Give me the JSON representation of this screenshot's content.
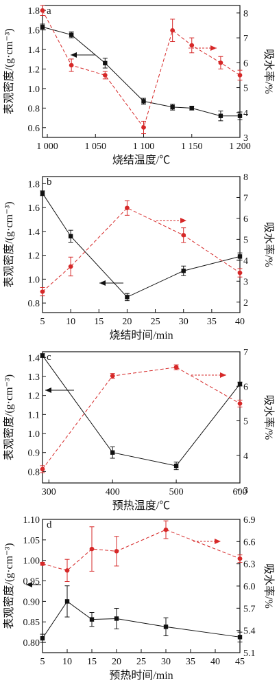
{
  "chart_data": [
    {
      "type": "line",
      "panel": "a",
      "xlabel": "烧结温度/℃",
      "ylabel": "表观密度/(g·cm⁻³)",
      "y2label": "吸水率/%",
      "xlim": [
        995,
        1200
      ],
      "ylim": [
        0.5,
        1.85
      ],
      "y2lim": [
        3.0,
        8.3
      ],
      "xticks": [
        1000,
        1050,
        1100,
        1150,
        1200
      ],
      "xtick_labels": [
        "1 000",
        "1 050",
        "1 100",
        "1 150",
        "1 200"
      ],
      "yticks": [
        0.6,
        0.8,
        1.0,
        1.2,
        1.4,
        1.6,
        1.8
      ],
      "ytick_labels": [
        "0.6",
        "0.8",
        "1.0",
        "1.2",
        "1.4",
        "1.6",
        "1.8"
      ],
      "y2ticks": [
        3,
        4,
        5,
        6,
        7,
        8
      ],
      "y2tick_labels": [
        "3",
        "4",
        "5",
        "6",
        "7",
        "8"
      ],
      "series": [
        {
          "axis": "left",
          "color": "#111111",
          "marker": "square",
          "dash": false,
          "arrow": "left",
          "x": [
            995,
            1025,
            1060,
            1100,
            1130,
            1150,
            1180,
            1200
          ],
          "y": [
            1.63,
            1.55,
            1.26,
            0.87,
            0.81,
            0.8,
            0.72,
            0.72
          ],
          "err": [
            0.03,
            0.03,
            0.05,
            0.03,
            0.03,
            0.02,
            0.05,
            0.04
          ]
        },
        {
          "axis": "right",
          "color": "#d62828",
          "marker": "circle",
          "dash": true,
          "arrow": "right",
          "x": [
            995,
            1025,
            1060,
            1100,
            1130,
            1150,
            1180,
            1200
          ],
          "y": [
            8.1,
            5.9,
            5.5,
            3.4,
            7.3,
            6.7,
            6.0,
            5.5
          ],
          "err": [
            0.2,
            0.25,
            0.15,
            0.25,
            0.45,
            0.3,
            0.25,
            0.2
          ]
        }
      ]
    },
    {
      "type": "line",
      "panel": "b",
      "xlabel": "烧结时间/min",
      "ylabel": "表观密度/(g·cm⁻³)",
      "y2label": "吸水率/%",
      "xlim": [
        5,
        40
      ],
      "ylim": [
        0.72,
        1.86
      ],
      "y2lim": [
        1.5,
        8.0
      ],
      "xticks": [
        5,
        10,
        15,
        20,
        25,
        30,
        35,
        40
      ],
      "xtick_labels": [
        "5",
        "10",
        "15",
        "20",
        "25",
        "30",
        "35",
        "40"
      ],
      "yticks": [
        0.8,
        1.0,
        1.2,
        1.4,
        1.6,
        1.8
      ],
      "ytick_labels": [
        "0.8",
        "1.0",
        "1.2",
        "1.4",
        "1.6",
        "1.8"
      ],
      "y2ticks": [
        2,
        3,
        4,
        5,
        6,
        7,
        8
      ],
      "y2tick_labels": [
        "2",
        "3",
        "4",
        "5",
        "6",
        "7",
        "8"
      ],
      "series": [
        {
          "axis": "left",
          "color": "#111111",
          "marker": "square",
          "dash": false,
          "arrow": "left",
          "x": [
            5,
            10,
            20,
            30,
            40
          ],
          "y": [
            1.72,
            1.36,
            0.85,
            1.07,
            1.19
          ],
          "err": [
            0.02,
            0.05,
            0.03,
            0.04,
            0.03
          ]
        },
        {
          "axis": "right",
          "color": "#d62828",
          "marker": "circle",
          "dash": true,
          "arrow": "right",
          "x": [
            5,
            10,
            20,
            30,
            40
          ],
          "y": [
            2.5,
            3.7,
            6.5,
            5.2,
            3.4
          ],
          "err": [
            0.2,
            0.45,
            0.35,
            0.35,
            0.2
          ]
        }
      ]
    },
    {
      "type": "line",
      "panel": "c",
      "xlabel": "预热温度/℃",
      "ylabel": "表观密度/(g·cm⁻³)",
      "y2label": "吸水率/%",
      "xlim": [
        290,
        600
      ],
      "ylim": [
        0.74,
        1.43
      ],
      "y2lim": [
        3.2,
        7.0
      ],
      "xticks": [
        300,
        400,
        500,
        600
      ],
      "xtick_labels": [
        "300",
        "400",
        "500",
        "600"
      ],
      "yticks": [
        0.8,
        0.9,
        1.0,
        1.1,
        1.2,
        1.3,
        1.4
      ],
      "ytick_labels": [
        "0.8",
        "0.9",
        "1.0",
        "1.1",
        "1.2",
        "1.3",
        "1.4"
      ],
      "y2ticks": [
        3,
        4,
        5,
        6,
        7
      ],
      "y2tick_labels": [
        "3",
        "4",
        "5",
        "6",
        "7"
      ],
      "series": [
        {
          "axis": "left",
          "color": "#111111",
          "marker": "square",
          "dash": false,
          "arrow": "left",
          "x": [
            290,
            400,
            500,
            600
          ],
          "y": [
            1.41,
            0.9,
            0.83,
            1.26
          ],
          "err": [
            0.01,
            0.03,
            0.02,
            0.01
          ]
        },
        {
          "axis": "right",
          "color": "#d62828",
          "marker": "circle",
          "dash": true,
          "arrow": "right",
          "x": [
            290,
            400,
            500,
            600
          ],
          "y": [
            3.6,
            6.3,
            6.55,
            5.5
          ],
          "err": [
            0.1,
            0.07,
            0.07,
            0.1
          ]
        }
      ]
    },
    {
      "type": "line",
      "panel": "d",
      "xlabel": "预热时间/min",
      "ylabel": "表观密度/(g·cm⁻³)",
      "y2label": "吸水率/%",
      "xlim": [
        5,
        45
      ],
      "ylim": [
        0.775,
        1.1
      ],
      "y2lim": [
        5.1,
        6.9
      ],
      "xticks": [
        5,
        10,
        15,
        20,
        25,
        30,
        35,
        40,
        45
      ],
      "xtick_labels": [
        "5",
        "10",
        "15",
        "20",
        "25",
        "30",
        "35",
        "40",
        "45"
      ],
      "yticks": [
        0.8,
        0.85,
        0.9,
        0.95,
        1.0,
        1.05,
        1.1
      ],
      "ytick_labels": [
        "0.80",
        "0.85",
        "0.90",
        "0.95",
        "1.00",
        "1.05",
        "1.10"
      ],
      "y2ticks": [
        5.1,
        5.4,
        5.7,
        6.0,
        6.3,
        6.6,
        6.9
      ],
      "y2tick_labels": [
        "5.1",
        "5.4",
        "5.7",
        "6.0",
        "6.3",
        "6.6",
        "6.9"
      ],
      "series": [
        {
          "axis": "left",
          "color": "#111111",
          "marker": "square",
          "dash": false,
          "arrow": "left",
          "x": [
            5,
            10,
            15,
            20,
            30,
            45
          ],
          "y": [
            0.81,
            0.9,
            0.856,
            0.858,
            0.838,
            0.813
          ],
          "err": [
            0.01,
            0.038,
            0.017,
            0.025,
            0.022,
            0.012
          ]
        },
        {
          "axis": "right",
          "color": "#d62828",
          "marker": "circle",
          "dash": true,
          "arrow": "right",
          "x": [
            5,
            10,
            15,
            20,
            30,
            45
          ],
          "y": [
            6.3,
            6.21,
            6.5,
            6.47,
            6.76,
            6.37
          ],
          "err": [
            0.02,
            0.15,
            0.3,
            0.2,
            0.12,
            0.05
          ]
        }
      ]
    }
  ]
}
